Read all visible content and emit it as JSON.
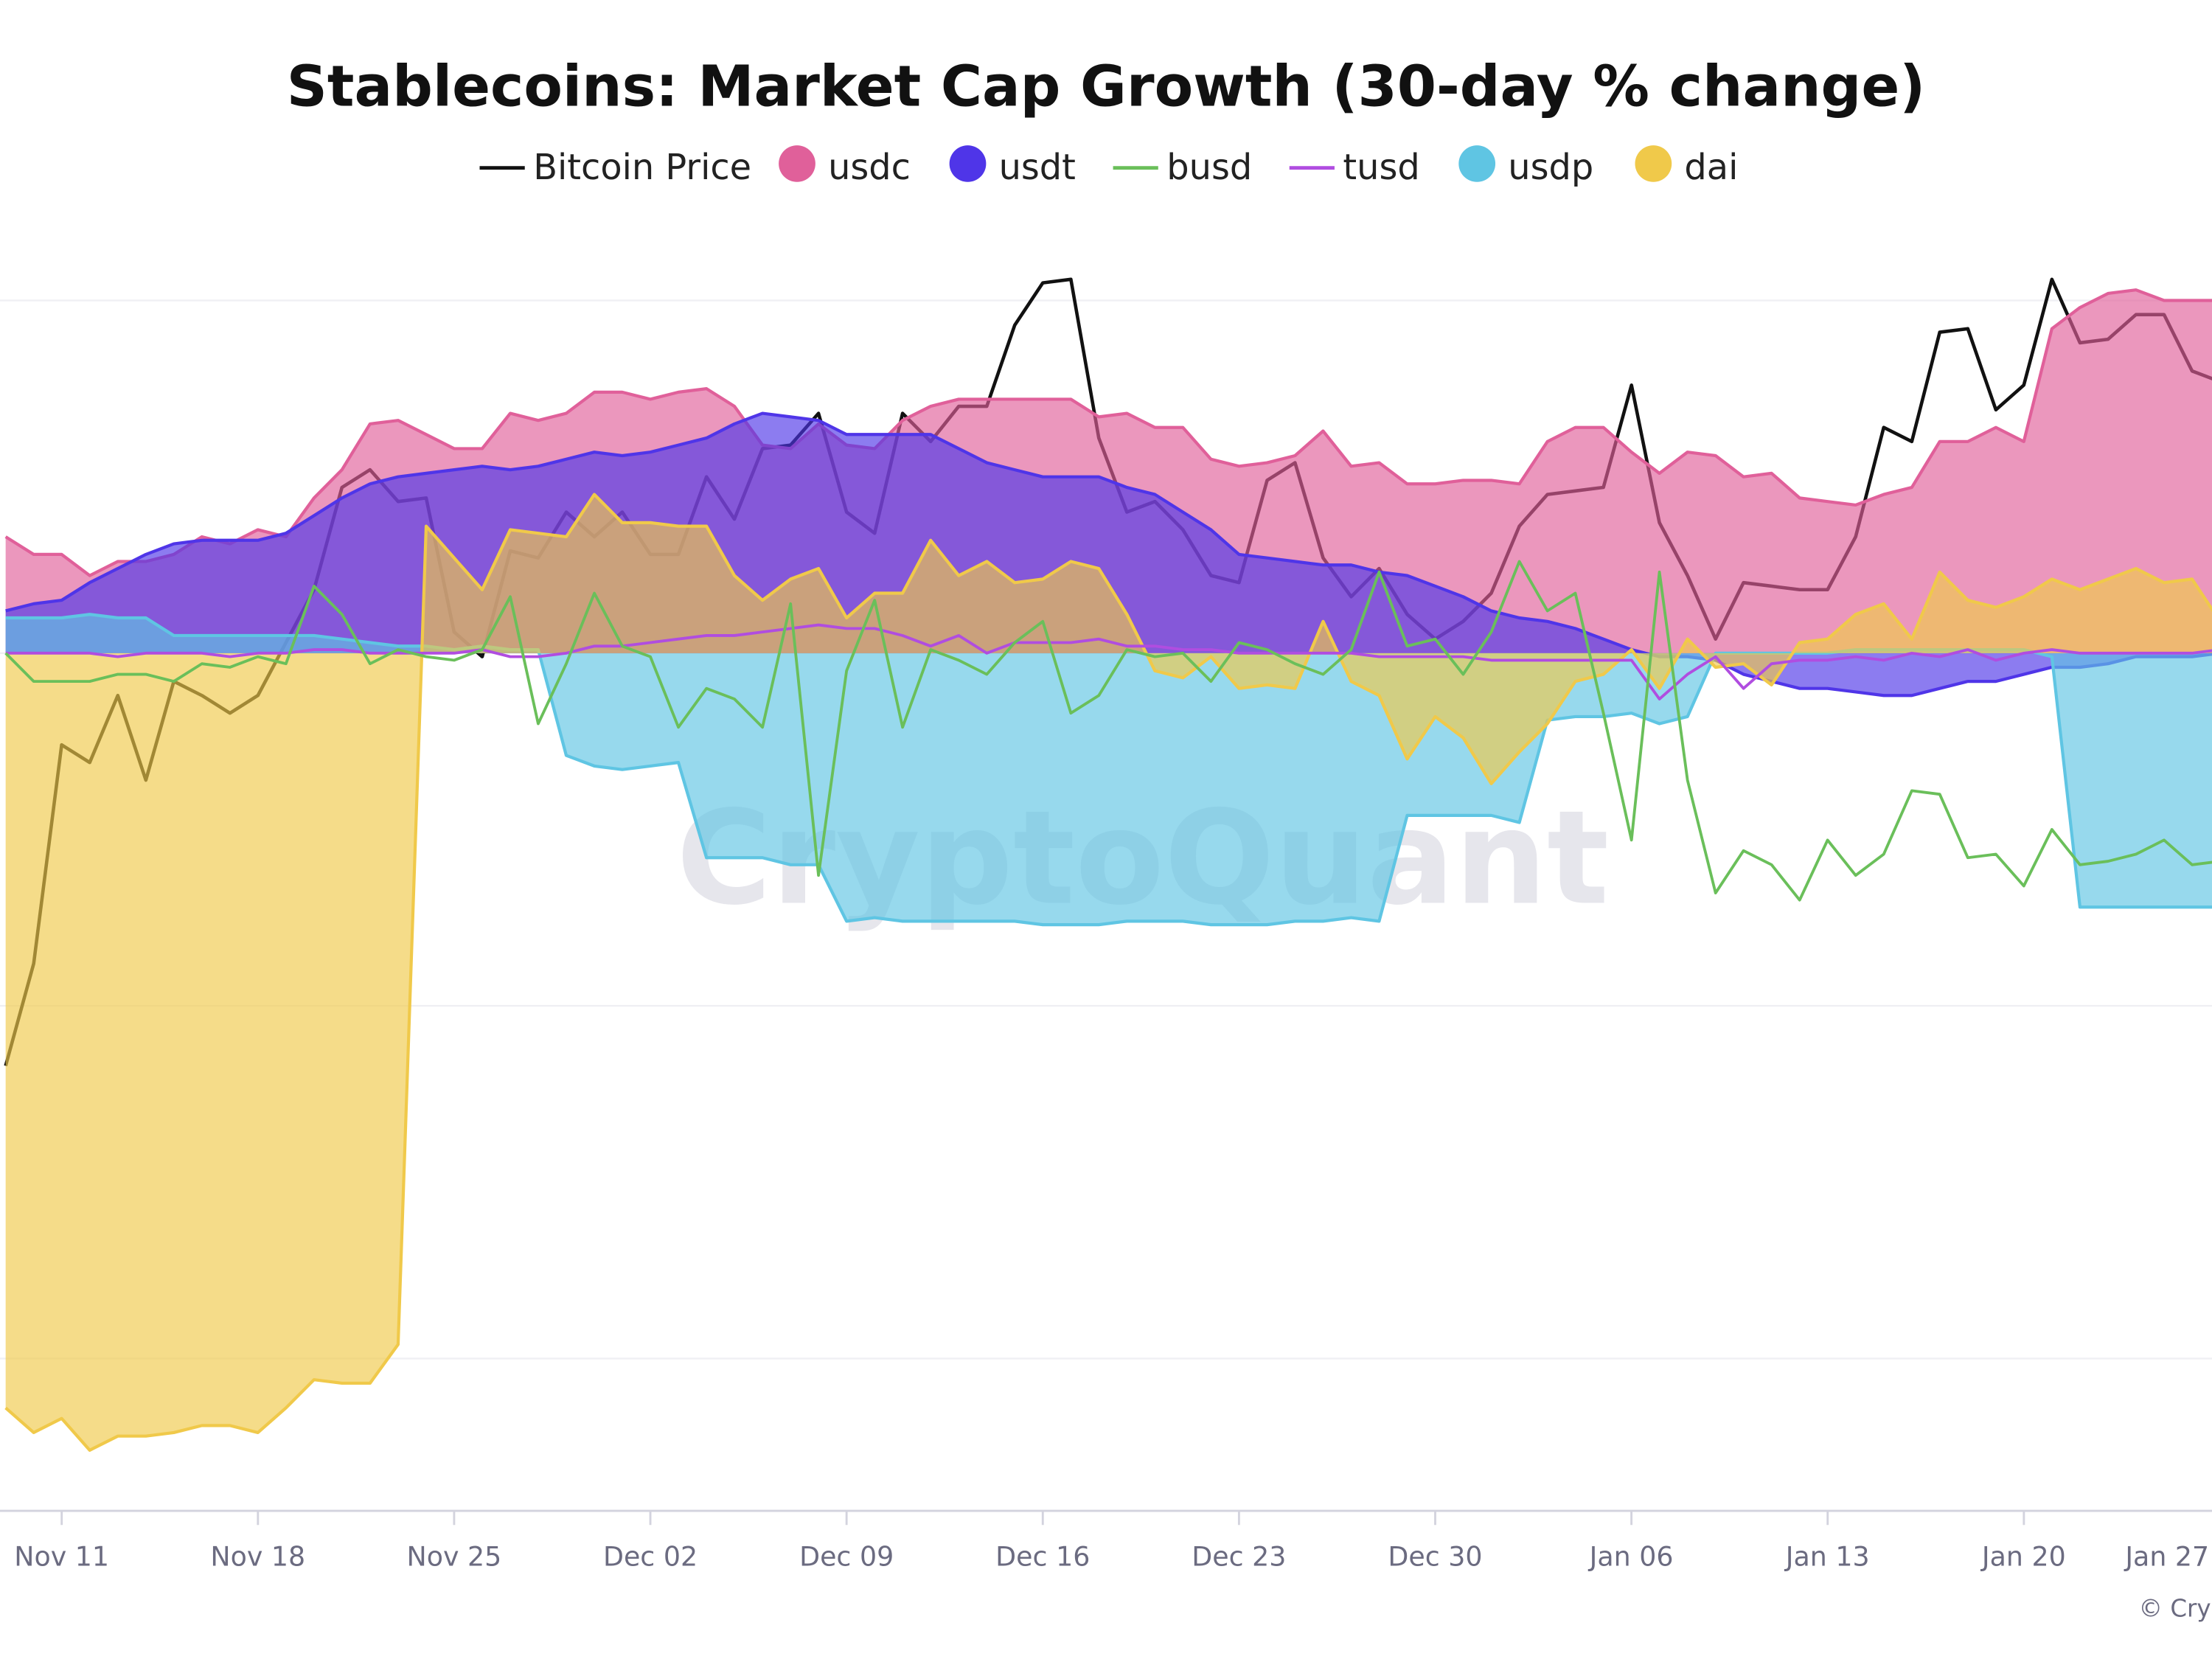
{
  "chart_data": {
    "type": "area",
    "title": "Stablecoins: Market Cap Growth (30-day % change)",
    "xlabel": "",
    "ylabel": "",
    "y_axis_labels_visible": false,
    "ylim": [
      -2.43,
      1.0
    ],
    "y_gridlines": [
      1,
      0,
      -1,
      -2
    ],
    "grid": true,
    "legend_position": "top",
    "x_tick_labels": [
      "Nov 11",
      "Nov 18",
      "Nov 25",
      "Dec 02",
      "Dec 09",
      "Dec 16",
      "Dec 23",
      "Dec 30",
      "Jan 06",
      "Jan 13",
      "Jan 20",
      "Jan 27"
    ],
    "x_tick_label_visible_text": [
      "Nov 11",
      "Nov 18",
      "Nov 25",
      "Dec 02",
      "Dec 09",
      "Dec 16",
      "Dec 23",
      "Dec 30",
      "Jan 06",
      "Jan 13",
      "Jan 20",
      "Jan"
    ],
    "x": [
      "Nov 09",
      "Nov 10",
      "Nov 11",
      "Nov 12",
      "Nov 13",
      "Nov 14",
      "Nov 15",
      "Nov 16",
      "Nov 17",
      "Nov 18",
      "Nov 19",
      "Nov 20",
      "Nov 21",
      "Nov 22",
      "Nov 23",
      "Nov 24",
      "Nov 25",
      "Nov 26",
      "Nov 27",
      "Nov 28",
      "Nov 29",
      "Nov 30",
      "Dec 01",
      "Dec 02",
      "Dec 03",
      "Dec 04",
      "Dec 05",
      "Dec 06",
      "Dec 07",
      "Dec 08",
      "Dec 09",
      "Dec 10",
      "Dec 11",
      "Dec 12",
      "Dec 13",
      "Dec 14",
      "Dec 15",
      "Dec 16",
      "Dec 17",
      "Dec 18",
      "Dec 19",
      "Dec 20",
      "Dec 21",
      "Dec 22",
      "Dec 23",
      "Dec 24",
      "Dec 25",
      "Dec 26",
      "Dec 27",
      "Dec 28",
      "Dec 29",
      "Dec 30",
      "Dec 31",
      "Jan 01",
      "Jan 02",
      "Jan 03",
      "Jan 04",
      "Jan 05",
      "Jan 06",
      "Jan 07",
      "Jan 08",
      "Jan 09",
      "Jan 10",
      "Jan 11",
      "Jan 12",
      "Jan 13",
      "Jan 14",
      "Jan 15",
      "Jan 16",
      "Jan 17",
      "Jan 18",
      "Jan 19",
      "Jan 20",
      "Jan 21",
      "Jan 22",
      "Jan 23",
      "Jan 24",
      "Jan 25",
      "Jan 26",
      "Jan 27"
    ],
    "series": [
      {
        "name": "Bitcoin Price",
        "kind": "line",
        "color": "#111111",
        "values": [
          -1.17,
          -0.88,
          -0.26,
          -0.31,
          -0.12,
          -0.36,
          -0.08,
          -0.12,
          -0.17,
          -0.12,
          0.03,
          0.18,
          0.47,
          0.52,
          0.43,
          0.44,
          0.06,
          -0.01,
          0.29,
          0.27,
          0.4,
          0.33,
          0.4,
          0.28,
          0.28,
          0.5,
          0.38,
          0.58,
          0.59,
          0.68,
          0.4,
          0.34,
          0.68,
          0.6,
          0.7,
          0.7,
          0.93,
          1.05,
          1.06,
          0.61,
          0.4,
          0.43,
          0.35,
          0.22,
          0.2,
          0.49,
          0.54,
          0.27,
          0.16,
          0.24,
          0.11,
          0.04,
          0.09,
          0.17,
          0.36,
          0.45,
          0.46,
          0.47,
          0.76,
          0.37,
          0.22,
          0.04,
          0.2,
          0.19,
          0.18,
          0.18,
          0.33,
          0.64,
          0.6,
          0.91,
          0.92,
          0.69,
          0.76,
          1.06,
          0.88,
          0.89,
          0.96,
          0.96,
          0.8,
          0.77
        ]
      },
      {
        "name": "usdc",
        "kind": "area",
        "color": "#e0609a",
        "values": [
          0.33,
          0.28,
          0.28,
          0.22,
          0.26,
          0.26,
          0.28,
          0.33,
          0.31,
          0.35,
          0.33,
          0.44,
          0.52,
          0.65,
          0.66,
          0.62,
          0.58,
          0.58,
          0.68,
          0.66,
          0.68,
          0.74,
          0.74,
          0.72,
          0.74,
          0.75,
          0.7,
          0.59,
          0.58,
          0.65,
          0.59,
          0.58,
          0.66,
          0.7,
          0.72,
          0.72,
          0.72,
          0.72,
          0.72,
          0.67,
          0.68,
          0.64,
          0.64,
          0.55,
          0.53,
          0.54,
          0.56,
          0.63,
          0.53,
          0.54,
          0.48,
          0.48,
          0.49,
          0.49,
          0.48,
          0.6,
          0.64,
          0.64,
          0.57,
          0.51,
          0.57,
          0.56,
          0.5,
          0.51,
          0.44,
          0.43,
          0.42,
          0.45,
          0.47,
          0.6,
          0.6,
          0.64,
          0.6,
          0.92,
          0.98,
          1.02,
          1.03,
          1.0,
          1.0,
          1.0
        ]
      },
      {
        "name": "usdt",
        "kind": "area",
        "color": "#4f35e8",
        "values": [
          0.12,
          0.14,
          0.15,
          0.2,
          0.24,
          0.28,
          0.31,
          0.32,
          0.32,
          0.32,
          0.34,
          0.39,
          0.44,
          0.48,
          0.5,
          0.51,
          0.52,
          0.53,
          0.52,
          0.53,
          0.55,
          0.57,
          0.56,
          0.57,
          0.59,
          0.61,
          0.65,
          0.68,
          0.67,
          0.66,
          0.62,
          0.62,
          0.62,
          0.62,
          0.58,
          0.54,
          0.52,
          0.5,
          0.5,
          0.5,
          0.47,
          0.45,
          0.4,
          0.35,
          0.28,
          0.27,
          0.26,
          0.25,
          0.25,
          0.23,
          0.22,
          0.19,
          0.16,
          0.12,
          0.1,
          0.09,
          0.07,
          0.04,
          0.01,
          -0.01,
          -0.01,
          -0.02,
          -0.06,
          -0.08,
          -0.1,
          -0.1,
          -0.11,
          -0.12,
          -0.12,
          -0.1,
          -0.08,
          -0.08,
          -0.06,
          -0.04,
          -0.04,
          -0.03,
          -0.01,
          -0.01,
          -0.01,
          0.0
        ]
      },
      {
        "name": "busd",
        "kind": "line",
        "color": "#6abf5a",
        "values": [
          0.0,
          -0.08,
          -0.08,
          -0.08,
          -0.06,
          -0.06,
          -0.08,
          -0.03,
          -0.04,
          -0.01,
          -0.03,
          0.19,
          0.11,
          -0.03,
          0.01,
          -0.01,
          -0.02,
          0.01,
          0.16,
          -0.2,
          -0.03,
          0.17,
          0.02,
          -0.01,
          -0.21,
          -0.1,
          -0.13,
          -0.21,
          0.14,
          -0.63,
          -0.05,
          0.15,
          -0.21,
          0.01,
          -0.02,
          -0.06,
          0.03,
          0.09,
          -0.17,
          -0.12,
          0.01,
          -0.01,
          0.0,
          -0.08,
          0.03,
          0.01,
          -0.03,
          -0.06,
          0.01,
          0.23,
          0.02,
          0.04,
          -0.06,
          0.06,
          0.26,
          0.12,
          0.17,
          -0.17,
          -0.53,
          0.23,
          -0.36,
          -0.68,
          -0.56,
          -0.6,
          -0.7,
          -0.53,
          -0.63,
          -0.57,
          -0.39,
          -0.4,
          -0.58,
          -0.57,
          -0.66,
          -0.5,
          -0.6,
          -0.59,
          -0.57,
          -0.53,
          -0.6,
          -0.59
        ]
      },
      {
        "name": "tusd",
        "kind": "line",
        "color": "#b04de0",
        "values": [
          0.0,
          0.0,
          0.0,
          0.0,
          -0.01,
          0.0,
          0.0,
          0.0,
          -0.01,
          0.0,
          0.0,
          0.01,
          0.01,
          0.0,
          0.0,
          0.0,
          0.0,
          0.01,
          -0.01,
          -0.01,
          0.0,
          0.02,
          0.02,
          0.03,
          0.04,
          0.05,
          0.05,
          0.06,
          0.07,
          0.08,
          0.07,
          0.07,
          0.05,
          0.02,
          0.05,
          0.0,
          0.03,
          0.03,
          0.03,
          0.04,
          0.02,
          0.02,
          0.01,
          0.01,
          0.0,
          0.0,
          0.0,
          0.0,
          0.0,
          -0.01,
          -0.01,
          -0.01,
          -0.01,
          -0.02,
          -0.02,
          -0.02,
          -0.02,
          -0.02,
          -0.02,
          -0.13,
          -0.06,
          -0.01,
          -0.1,
          -0.03,
          -0.02,
          -0.02,
          -0.01,
          -0.02,
          0.0,
          -0.01,
          0.01,
          -0.02,
          0.0,
          0.01,
          0.0,
          0.0,
          0.0,
          0.0,
          0.0,
          0.01
        ]
      },
      {
        "name": "usdp",
        "kind": "area",
        "color": "#5fc5e3",
        "values": [
          0.1,
          0.1,
          0.1,
          0.11,
          0.1,
          0.1,
          0.05,
          0.05,
          0.05,
          0.05,
          0.05,
          0.05,
          0.04,
          0.03,
          0.02,
          0.02,
          0.01,
          0.02,
          0.01,
          0.01,
          -0.29,
          -0.32,
          -0.33,
          -0.32,
          -0.31,
          -0.58,
          -0.58,
          -0.58,
          -0.6,
          -0.6,
          -0.76,
          -0.75,
          -0.76,
          -0.76,
          -0.76,
          -0.76,
          -0.76,
          -0.77,
          -0.77,
          -0.77,
          -0.76,
          -0.76,
          -0.76,
          -0.77,
          -0.77,
          -0.77,
          -0.76,
          -0.76,
          -0.75,
          -0.76,
          -0.46,
          -0.46,
          -0.46,
          -0.46,
          -0.48,
          -0.19,
          -0.18,
          -0.18,
          -0.17,
          -0.2,
          -0.18,
          0.0,
          0.0,
          0.0,
          0.0,
          0.0,
          0.01,
          0.01,
          0.01,
          0.01,
          0.01,
          0.01,
          0.01,
          -0.01,
          -0.72,
          -0.72,
          -0.72,
          -0.72,
          -0.72,
          -0.72
        ]
      },
      {
        "name": "dai",
        "kind": "area",
        "color": "#f0c94a",
        "values": [
          -2.14,
          -2.21,
          -2.17,
          -2.26,
          -2.22,
          -2.22,
          -2.21,
          -2.19,
          -2.19,
          -2.21,
          -2.14,
          -2.06,
          -2.07,
          -2.07,
          -1.96,
          0.36,
          0.27,
          0.18,
          0.35,
          0.34,
          0.33,
          0.45,
          0.37,
          0.37,
          0.36,
          0.36,
          0.22,
          0.15,
          0.21,
          0.24,
          0.1,
          0.17,
          0.17,
          0.32,
          0.22,
          0.26,
          0.2,
          0.21,
          0.26,
          0.24,
          0.11,
          -0.05,
          -0.07,
          -0.01,
          -0.1,
          -0.09,
          -0.1,
          0.09,
          -0.08,
          -0.12,
          -0.3,
          -0.18,
          -0.24,
          -0.37,
          -0.28,
          -0.2,
          -0.08,
          -0.06,
          0.01,
          -0.1,
          0.04,
          -0.04,
          -0.03,
          -0.09,
          0.03,
          0.04,
          0.11,
          0.14,
          0.04,
          0.23,
          0.15,
          0.13,
          0.16,
          0.21,
          0.18,
          0.21,
          0.24,
          0.2,
          0.21,
          0.09
        ]
      }
    ],
    "legend": [
      {
        "label": "Bitcoin Price",
        "marker": "line",
        "color": "#111111"
      },
      {
        "label": "usdc",
        "marker": "circle",
        "color": "#e0609a"
      },
      {
        "label": "usdt",
        "marker": "circle",
        "color": "#4f35e8"
      },
      {
        "label": "busd",
        "marker": "line",
        "color": "#6abf5a"
      },
      {
        "label": "tusd",
        "marker": "line",
        "color": "#b04de0"
      },
      {
        "label": "usdp",
        "marker": "circle",
        "color": "#5fc5e3"
      },
      {
        "label": "dai",
        "marker": "circle",
        "color": "#f0c94a"
      }
    ],
    "watermark": "CryptoQuant",
    "copyright": "© CryptoQuant"
  }
}
